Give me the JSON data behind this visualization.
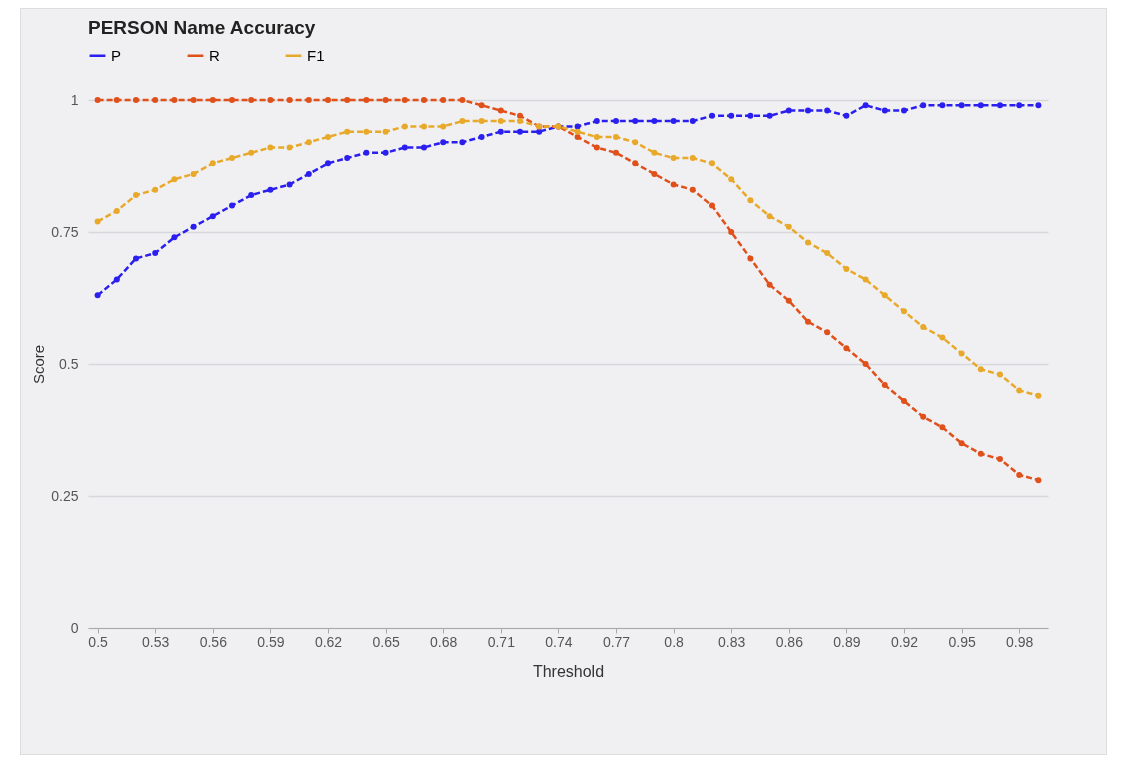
{
  "chart_data": {
    "type": "line",
    "title": "PERSON Name Accuracy",
    "xlabel": "Threshold",
    "ylabel": "Score",
    "x": [
      0.5,
      0.51,
      0.52,
      0.53,
      0.54,
      0.55,
      0.56,
      0.57,
      0.58,
      0.59,
      0.6,
      0.61,
      0.62,
      0.63,
      0.64,
      0.65,
      0.66,
      0.67,
      0.68,
      0.69,
      0.7,
      0.71,
      0.72,
      0.73,
      0.74,
      0.75,
      0.76,
      0.77,
      0.78,
      0.79,
      0.8,
      0.81,
      0.82,
      0.83,
      0.84,
      0.85,
      0.86,
      0.87,
      0.88,
      0.89,
      0.9,
      0.91,
      0.92,
      0.93,
      0.94,
      0.95,
      0.96,
      0.97,
      0.98,
      0.99
    ],
    "series": [
      {
        "name": "P",
        "color": "#2a1fef",
        "values": [
          0.63,
          0.66,
          0.7,
          0.71,
          0.74,
          0.76,
          0.78,
          0.8,
          0.82,
          0.83,
          0.84,
          0.86,
          0.88,
          0.89,
          0.9,
          0.9,
          0.91,
          0.91,
          0.92,
          0.92,
          0.93,
          0.94,
          0.94,
          0.94,
          0.95,
          0.95,
          0.96,
          0.96,
          0.96,
          0.96,
          0.96,
          0.96,
          0.97,
          0.97,
          0.97,
          0.97,
          0.98,
          0.98,
          0.98,
          0.97,
          0.99,
          0.98,
          0.98,
          0.99,
          0.99,
          0.99,
          0.99,
          0.99,
          0.99,
          0.99
        ]
      },
      {
        "name": "R",
        "color": "#e0501a",
        "values": [
          1,
          1,
          1,
          1,
          1,
          1,
          1,
          1,
          1,
          1,
          1,
          1,
          1,
          1,
          1,
          1,
          1,
          1,
          1,
          1,
          0.99,
          0.98,
          0.97,
          0.95,
          0.95,
          0.93,
          0.91,
          0.9,
          0.88,
          0.86,
          0.84,
          0.83,
          0.8,
          0.75,
          0.7,
          0.65,
          0.62,
          0.58,
          0.56,
          0.53,
          0.5,
          0.46,
          0.43,
          0.4,
          0.38,
          0.35,
          0.33,
          0.32,
          0.29,
          0.28
        ]
      },
      {
        "name": "F1",
        "color": "#e8a92a",
        "values": [
          0.77,
          0.79,
          0.82,
          0.83,
          0.85,
          0.86,
          0.88,
          0.89,
          0.9,
          0.91,
          0.91,
          0.92,
          0.93,
          0.94,
          0.94,
          0.94,
          0.95,
          0.95,
          0.95,
          0.96,
          0.96,
          0.96,
          0.96,
          0.95,
          0.95,
          0.94,
          0.93,
          0.93,
          0.92,
          0.9,
          0.89,
          0.89,
          0.88,
          0.85,
          0.81,
          0.78,
          0.76,
          0.73,
          0.71,
          0.68,
          0.66,
          0.63,
          0.6,
          0.57,
          0.55,
          0.52,
          0.49,
          0.48,
          0.45,
          0.44
        ]
      }
    ],
    "xlim": [
      0.495,
      0.995
    ],
    "xticks": [
      0.5,
      0.53,
      0.56,
      0.59,
      0.62,
      0.65,
      0.68,
      0.71,
      0.74,
      0.77,
      0.8,
      0.83,
      0.86,
      0.89,
      0.92,
      0.95,
      0.98
    ],
    "ylim": [
      0,
      1
    ],
    "yticks": [
      0,
      0.25,
      0.5,
      0.75,
      1
    ],
    "grid": "y",
    "legend": "top left",
    "marker": "circle",
    "line_style": "dashed"
  }
}
